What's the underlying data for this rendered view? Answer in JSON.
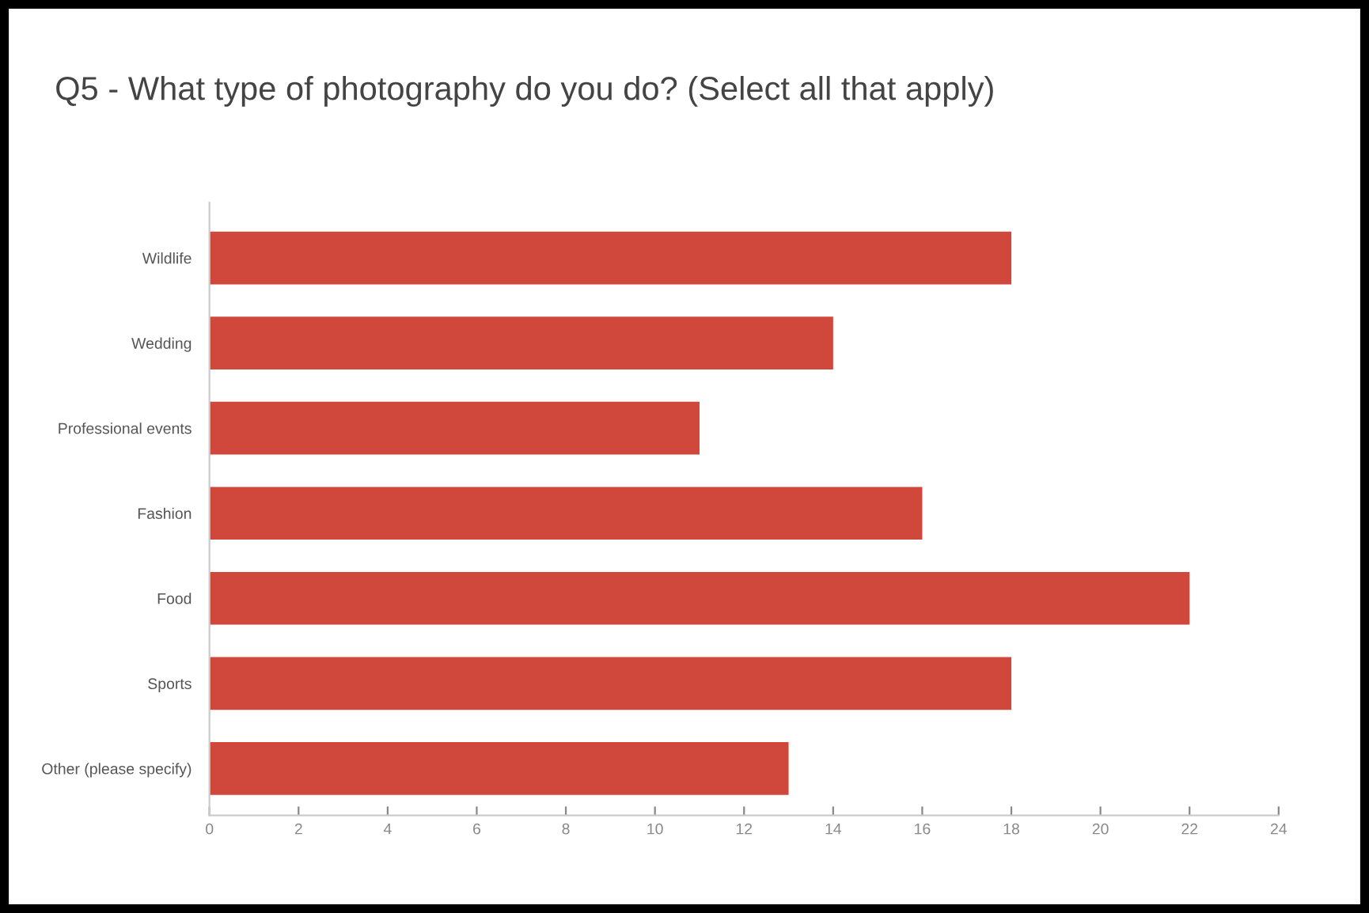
{
  "chart_data": {
    "type": "bar",
    "orientation": "horizontal",
    "title": "Q5 - What type of photography do you do? (Select all that apply)",
    "categories": [
      "Wildlife",
      "Wedding",
      "Professional events",
      "Fashion",
      "Food",
      "Sports",
      "Other (please specify)"
    ],
    "values": [
      18,
      14,
      11,
      16,
      22,
      18,
      13
    ],
    "color": "#d0473b",
    "xlim": [
      0,
      24
    ],
    "xticks": [
      0,
      2,
      4,
      6,
      8,
      10,
      12,
      14,
      16,
      18,
      20,
      22,
      24
    ],
    "grid": false,
    "legend": false
  }
}
